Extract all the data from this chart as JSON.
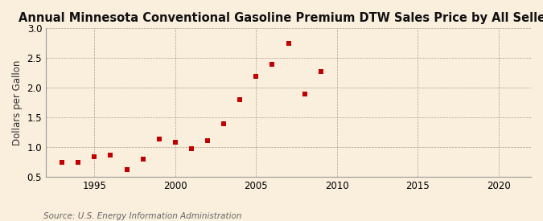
{
  "title": "Annual Minnesota Conventional Gasoline Premium DTW Sales Price by All Sellers",
  "ylabel": "Dollars per Gallon",
  "source": "Source: U.S. Energy Information Administration",
  "background_color": "#faeedd",
  "years": [
    1993,
    1994,
    1995,
    1996,
    1997,
    1998,
    1999,
    2000,
    2001,
    2002,
    2003,
    2004,
    2005,
    2006,
    2007,
    2008,
    2009
  ],
  "values": [
    0.75,
    0.75,
    0.84,
    0.87,
    0.63,
    0.8,
    1.14,
    1.09,
    0.97,
    1.11,
    1.39,
    1.8,
    2.19,
    2.4,
    2.75,
    1.9,
    2.27
  ],
  "xlim": [
    1992,
    2022
  ],
  "ylim": [
    0.5,
    3.0
  ],
  "yticks": [
    0.5,
    1.0,
    1.5,
    2.0,
    2.5,
    3.0
  ],
  "xticks": [
    1995,
    2000,
    2005,
    2010,
    2015,
    2020
  ],
  "marker_color": "#c00000",
  "marker_size": 4,
  "title_fontsize": 10.5,
  "label_fontsize": 8.5,
  "tick_fontsize": 8.5,
  "source_fontsize": 7.5
}
